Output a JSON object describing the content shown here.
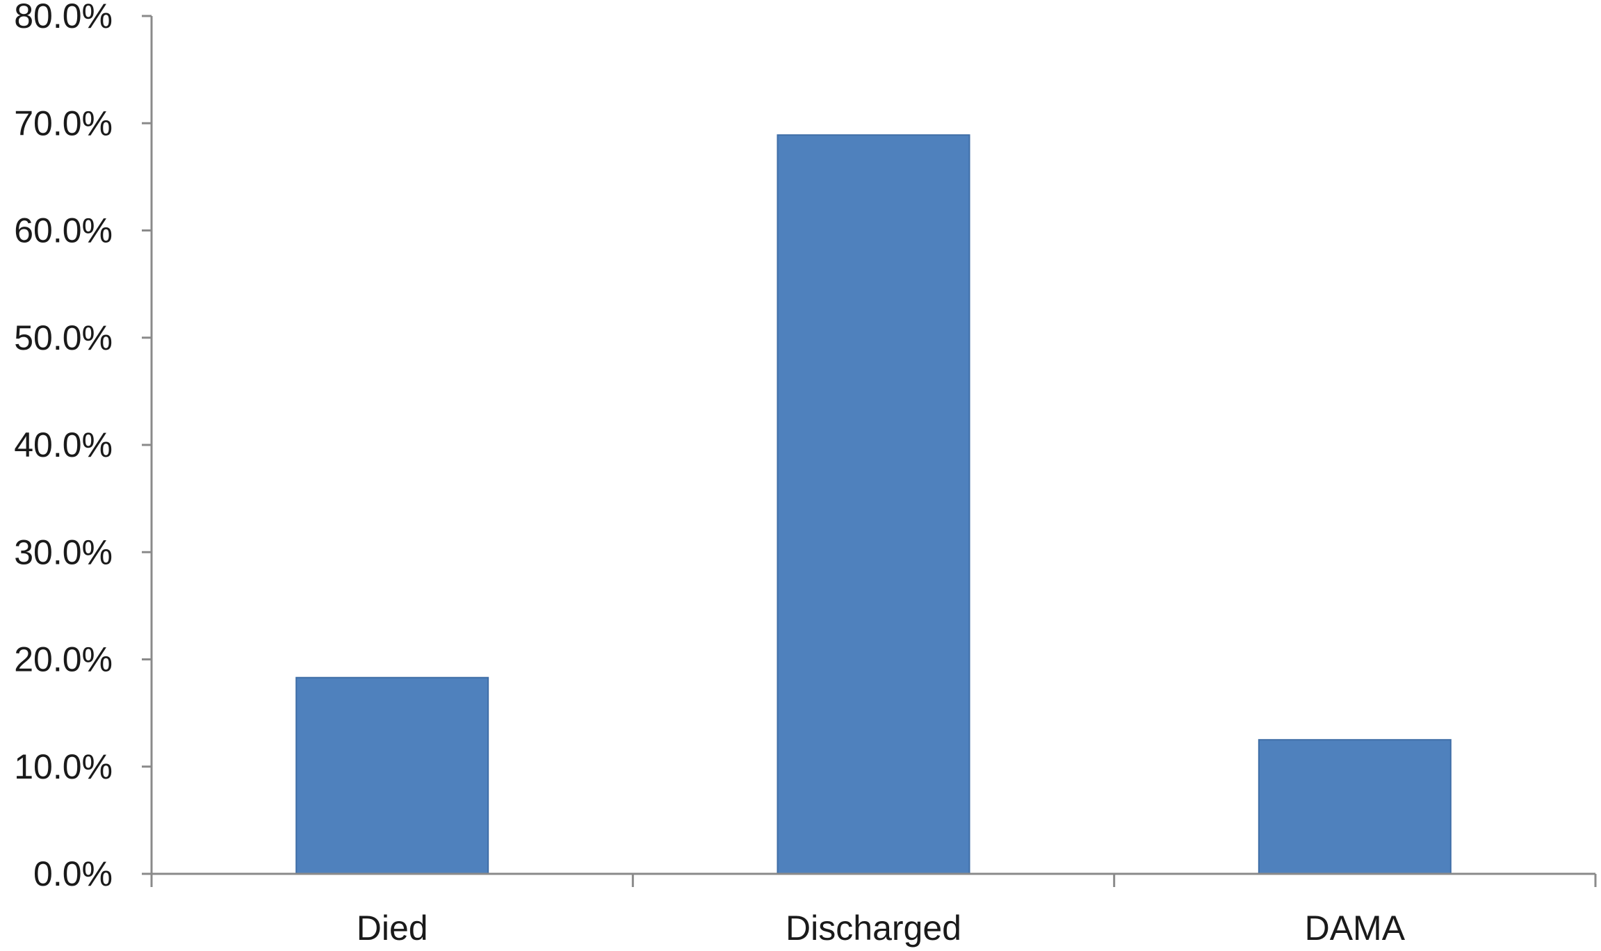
{
  "chart_data": {
    "type": "bar",
    "categories": [
      "Died",
      "Discharged",
      "DAMA"
    ],
    "values": [
      18.3,
      68.9,
      12.5
    ],
    "yticks": [
      "0.0%",
      "10.0%",
      "20.0%",
      "30.0%",
      "40.0%",
      "50.0%",
      "60.0%",
      "70.0%",
      "80.0%"
    ],
    "ylim": [
      0,
      80
    ],
    "title": "",
    "xlabel": "",
    "ylabel": "",
    "grid": false,
    "legend": "none",
    "bar_color": "#4f81bd",
    "axis_color": "#8a8a8a"
  }
}
